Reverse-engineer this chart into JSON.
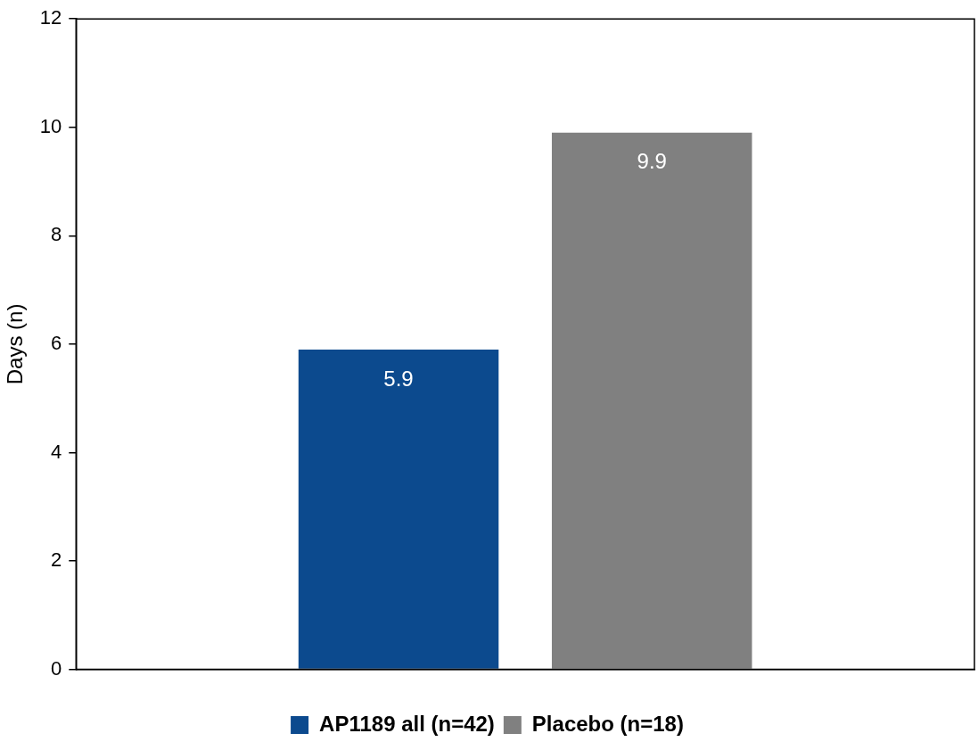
{
  "chart_data": {
    "type": "bar",
    "ylabel": "Days (n)",
    "categories": [
      null
    ],
    "series": [
      {
        "name": "AP1189 all (n=42)",
        "color": "#0c4a8e",
        "values": [
          5.9
        ]
      },
      {
        "name": "Placebo (n=18)",
        "color": "#808080",
        "values": [
          9.9
        ]
      }
    ],
    "ylim": [
      0,
      12
    ],
    "yticks": [
      0,
      2,
      4,
      6,
      8,
      10,
      12
    ],
    "grid": false,
    "legend": "bottom",
    "data_labels": true
  }
}
